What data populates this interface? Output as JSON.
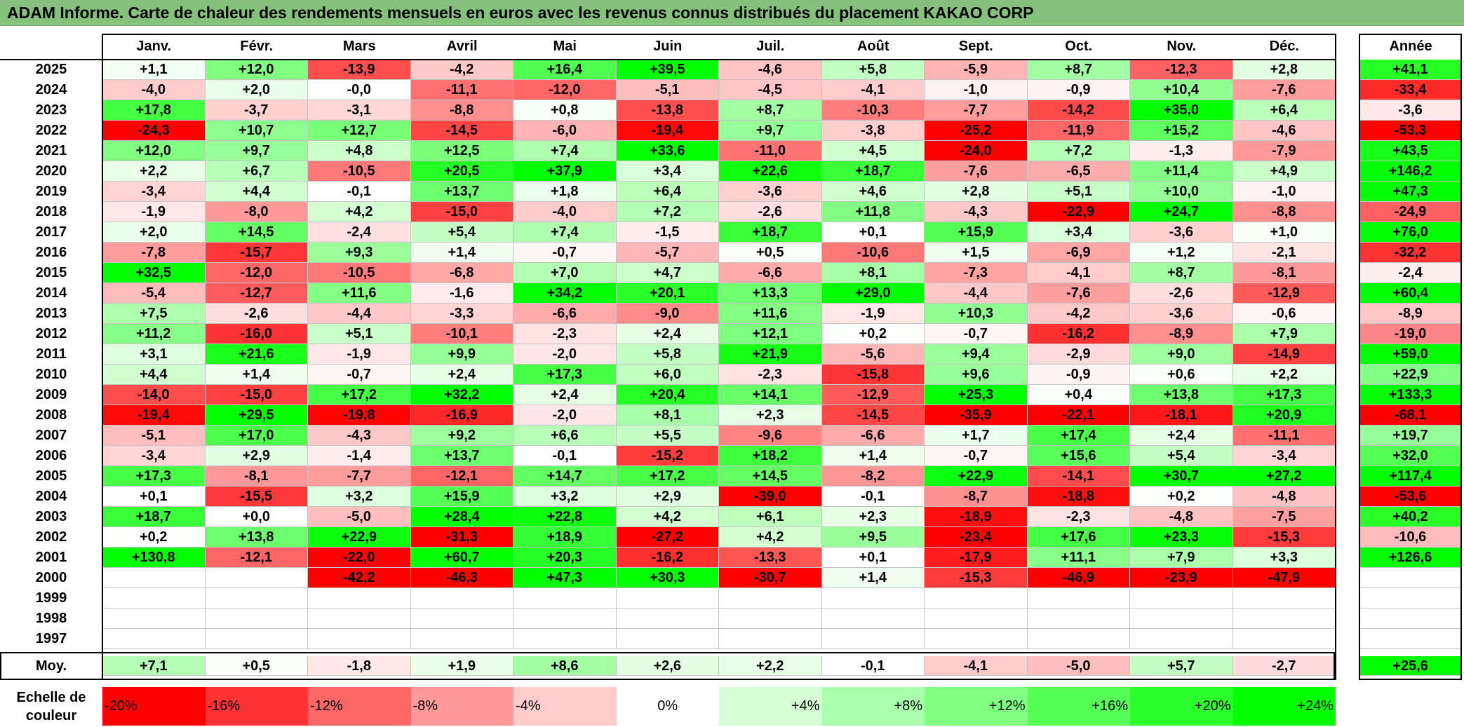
{
  "title": "ADAM Informe. Carte de chaleur des rendements mensuels en euros avec les revenus connus distribués du placement KAKAO CORP",
  "chart_data": {
    "type": "heatmap",
    "months": [
      "Janv.",
      "Févr.",
      "Mars",
      "Avril",
      "Mai",
      "Juin",
      "Juil.",
      "Août",
      "Sept.",
      "Oct.",
      "Nov.",
      "Déc."
    ],
    "year_header": "Année",
    "rows": [
      {
        "year": "2025",
        "values": [
          "+1,1",
          "+12,0",
          "-13,9",
          "-4,2",
          "+16,4",
          "+39,5",
          "-4,6",
          "+5,8",
          "-5,9",
          "+8,7",
          "-12,3",
          "+2,8"
        ],
        "annual": "+41,1"
      },
      {
        "year": "2024",
        "values": [
          "-4,0",
          "+2,0",
          "-0,0",
          "-11,1",
          "-12,0",
          "-5,1",
          "-4,5",
          "-4,1",
          "-1,0",
          "-0,9",
          "+10,4",
          "-7,6"
        ],
        "annual": "-33,4"
      },
      {
        "year": "2023",
        "values": [
          "+17,8",
          "-3,7",
          "-3,1",
          "-8,8",
          "+0,8",
          "-13,8",
          "+8,7",
          "-10,3",
          "-7,7",
          "-14,2",
          "+35,0",
          "+6,4"
        ],
        "annual": "-3,6"
      },
      {
        "year": "2022",
        "values": [
          "-24,3",
          "+10,7",
          "+12,7",
          "-14,5",
          "-6,0",
          "-19,4",
          "+9,7",
          "-3,8",
          "-25,2",
          "-11,9",
          "+15,2",
          "-4,6"
        ],
        "annual": "-53,3"
      },
      {
        "year": "2021",
        "values": [
          "+12,0",
          "+9,7",
          "+4,8",
          "+12,5",
          "+7,4",
          "+33,6",
          "-11,0",
          "+4,5",
          "-24,0",
          "+7,2",
          "-1,3",
          "-7,9"
        ],
        "annual": "+43,5"
      },
      {
        "year": "2020",
        "values": [
          "+2,2",
          "+6,7",
          "-10,5",
          "+20,5",
          "+37,9",
          "+3,4",
          "+22,6",
          "+18,7",
          "-7,6",
          "-6,5",
          "+11,4",
          "+4,9"
        ],
        "annual": "+146,2"
      },
      {
        "year": "2019",
        "values": [
          "-3,4",
          "+4,4",
          "-0,1",
          "+13,7",
          "+1,8",
          "+6,4",
          "-3,6",
          "+4,6",
          "+2,8",
          "+5,1",
          "+10,0",
          "-1,0"
        ],
        "annual": "+47,3"
      },
      {
        "year": "2018",
        "values": [
          "-1,9",
          "-8,0",
          "+4,2",
          "-15,0",
          "-4,0",
          "+7,2",
          "-2,6",
          "+11,8",
          "-4,3",
          "-22,9",
          "+24,7",
          "-8,8"
        ],
        "annual": "-24,9"
      },
      {
        "year": "2017",
        "values": [
          "+2,0",
          "+14,5",
          "-2,4",
          "+5,4",
          "+7,4",
          "-1,5",
          "+18,7",
          "+0,1",
          "+15,9",
          "+3,4",
          "-3,6",
          "+1,0"
        ],
        "annual": "+76,0"
      },
      {
        "year": "2016",
        "values": [
          "-7,8",
          "-15,7",
          "+9,3",
          "+1,4",
          "-0,7",
          "-5,7",
          "+0,5",
          "-10,6",
          "+1,5",
          "-6,9",
          "+1,2",
          "-2,1"
        ],
        "annual": "-32,2"
      },
      {
        "year": "2015",
        "values": [
          "+32,5",
          "-12,0",
          "-10,5",
          "-6,8",
          "+7,0",
          "+4,7",
          "-6,6",
          "+8,1",
          "-7,3",
          "-4,1",
          "+8,7",
          "-8,1"
        ],
        "annual": "-2,4"
      },
      {
        "year": "2014",
        "values": [
          "-5,4",
          "-12,7",
          "+11,6",
          "-1,6",
          "+34,2",
          "+20,1",
          "+13,3",
          "+29,0",
          "-4,4",
          "-7,6",
          "-2,6",
          "-12,9"
        ],
        "annual": "+60,4"
      },
      {
        "year": "2013",
        "values": [
          "+7,5",
          "-2,6",
          "-4,4",
          "-3,3",
          "-6,6",
          "-9,0",
          "+11,6",
          "-1,9",
          "+10,3",
          "-4,2",
          "-3,6",
          "-0,6"
        ],
        "annual": "-8,9"
      },
      {
        "year": "2012",
        "values": [
          "+11,2",
          "-16,0",
          "+5,1",
          "-10,1",
          "-2,3",
          "+2,4",
          "+12,1",
          "+0,2",
          "-0,7",
          "-16,2",
          "-8,9",
          "+7,9"
        ],
        "annual": "-19,0"
      },
      {
        "year": "2011",
        "values": [
          "+3,1",
          "+21,6",
          "-1,9",
          "+9,9",
          "-2,0",
          "+5,8",
          "+21,9",
          "-5,6",
          "+9,4",
          "-2,9",
          "+9,0",
          "-14,9"
        ],
        "annual": "+59,0"
      },
      {
        "year": "2010",
        "values": [
          "+4,4",
          "+1,4",
          "-0,7",
          "+2,4",
          "+17,3",
          "+6,0",
          "-2,3",
          "-15,8",
          "+9,6",
          "-0,9",
          "+0,6",
          "+2,2"
        ],
        "annual": "+22,9"
      },
      {
        "year": "2009",
        "values": [
          "-14,0",
          "-15,0",
          "+17,2",
          "+32,2",
          "+2,4",
          "+20,4",
          "+14,1",
          "-12,9",
          "+25,3",
          "+0,4",
          "+13,8",
          "+17,3"
        ],
        "annual": "+133,3"
      },
      {
        "year": "2008",
        "values": [
          "-19,4",
          "+29,5",
          "-19,8",
          "-16,9",
          "-2,0",
          "+8,1",
          "+2,3",
          "-14,5",
          "-35,9",
          "-22,1",
          "-18,1",
          "+20,9"
        ],
        "annual": "-68,1"
      },
      {
        "year": "2007",
        "values": [
          "-5,1",
          "+17,0",
          "-4,3",
          "+9,2",
          "+6,6",
          "+5,5",
          "-9,6",
          "-6,6",
          "+1,7",
          "+17,4",
          "+2,4",
          "-11,1"
        ],
        "annual": "+19,7"
      },
      {
        "year": "2006",
        "values": [
          "-3,4",
          "+2,9",
          "-1,4",
          "+13,7",
          "-0,1",
          "-15,2",
          "+18,2",
          "+1,4",
          "-0,7",
          "+15,6",
          "+5,4",
          "-3,4"
        ],
        "annual": "+32,0"
      },
      {
        "year": "2005",
        "values": [
          "+17,3",
          "-8,1",
          "-7,7",
          "-12,1",
          "+14,7",
          "+17,2",
          "+14,5",
          "-8,2",
          "+22,9",
          "-14,1",
          "+30,7",
          "+27,2"
        ],
        "annual": "+117,4"
      },
      {
        "year": "2004",
        "values": [
          "+0,1",
          "-15,5",
          "+3,2",
          "+15,9",
          "+3,2",
          "+2,9",
          "-39,0",
          "-0,1",
          "-8,7",
          "-18,8",
          "+0,2",
          "-4,8"
        ],
        "annual": "-53,6"
      },
      {
        "year": "2003",
        "values": [
          "+18,7",
          "+0,0",
          "-5,0",
          "+28,4",
          "+22,8",
          "+4,2",
          "+6,1",
          "+2,3",
          "-18,9",
          "-2,3",
          "-4,8",
          "-7,5"
        ],
        "annual": "+40,2"
      },
      {
        "year": "2002",
        "values": [
          "+0,2",
          "+13,8",
          "+22,9",
          "-31,3",
          "+18,9",
          "-27,2",
          "+4,2",
          "+9,5",
          "-23,4",
          "+17,6",
          "+23,3",
          "-15,3"
        ],
        "annual": "-10,6"
      },
      {
        "year": "2001",
        "values": [
          "+130,8",
          "-12,1",
          "-22,0",
          "+60,7",
          "+20,3",
          "-16,2",
          "-13,3",
          "+0,1",
          "-17,9",
          "+11,1",
          "+7,9",
          "+3,3"
        ],
        "annual": "+126,6"
      },
      {
        "year": "2000",
        "values": [
          "",
          "",
          "-42,2",
          "-46,3",
          "+47,3",
          "+30,3",
          "-30,7",
          "+1,4",
          "-15,3",
          "-46,9",
          "-23,9",
          "-47,9"
        ],
        "annual": ""
      },
      {
        "year": "1999",
        "values": [
          "",
          "",
          "",
          "",
          "",
          "",
          "",
          "",
          "",
          "",
          "",
          ""
        ],
        "annual": ""
      },
      {
        "year": "1998",
        "values": [
          "",
          "",
          "",
          "",
          "",
          "",
          "",
          "",
          "",
          "",
          "",
          ""
        ],
        "annual": ""
      },
      {
        "year": "1997",
        "values": [
          "",
          "",
          "",
          "",
          "",
          "",
          "",
          "",
          "",
          "",
          "",
          ""
        ],
        "annual": ""
      }
    ],
    "average": {
      "label": "Moy.",
      "values": [
        "+7,1",
        "+0,5",
        "-1,8",
        "+1,9",
        "+8,6",
        "+2,6",
        "+2,2",
        "-0,1",
        "-4,1",
        "-5,0",
        "+5,7",
        "-2,7"
      ],
      "annual": "+25,6"
    },
    "scale": {
      "label_line1": "Echelle de",
      "label_line2": "couleur",
      "stops": [
        {
          "label": "-20%",
          "value": -20,
          "color": "#ff0000"
        },
        {
          "label": "-16%",
          "value": -16,
          "color": "#ff3333"
        },
        {
          "label": "-12%",
          "value": -12,
          "color": "#ff6666"
        },
        {
          "label": "-8%",
          "value": -8,
          "color": "#ff9999"
        },
        {
          "label": "-4%",
          "value": -4,
          "color": "#ffcccc"
        },
        {
          "label": "0%",
          "value": 0,
          "color": "#ffffff"
        },
        {
          "label": "+4%",
          "value": 4,
          "color": "#d5ffd5"
        },
        {
          "label": "+8%",
          "value": 8,
          "color": "#aaffaa"
        },
        {
          "label": "+12%",
          "value": 12,
          "color": "#80ff80"
        },
        {
          "label": "+16%",
          "value": 16,
          "color": "#55ff55"
        },
        {
          "label": "+20%",
          "value": 20,
          "color": "#2bff2b"
        },
        {
          "label": "+24%",
          "value": 24,
          "color": "#00ff00"
        }
      ]
    }
  }
}
